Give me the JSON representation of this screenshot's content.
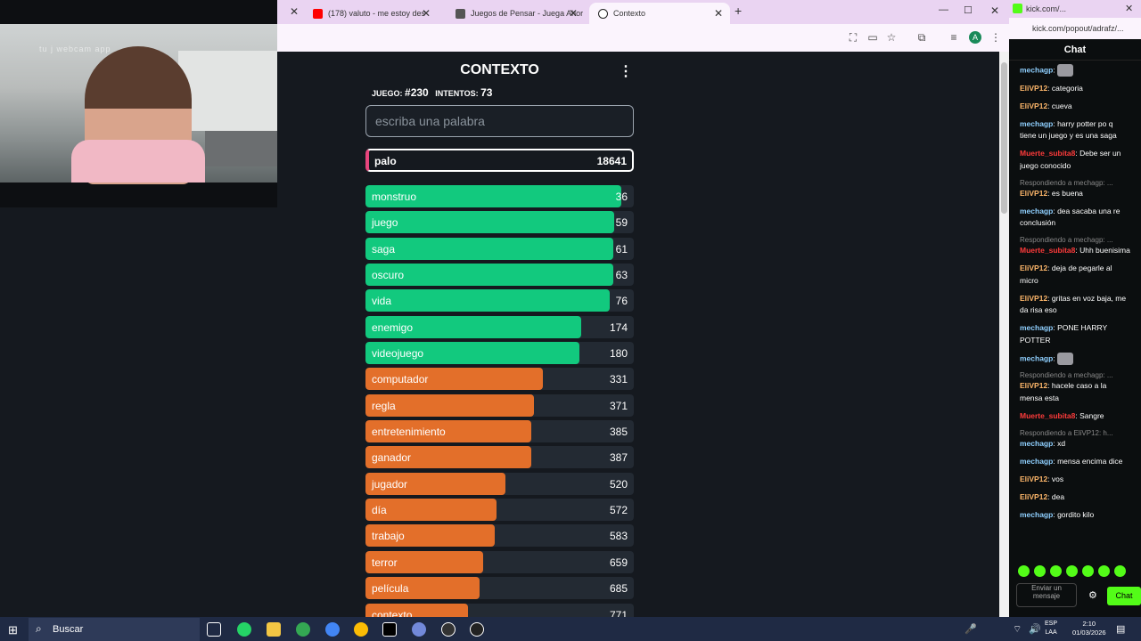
{
  "webcam": {
    "watermark": "tu j webcam app"
  },
  "browser": {
    "tabs": [
      {
        "label": "(178) valuto - me estoy des",
        "favicon_color": "#ff0000"
      },
      {
        "label": "Juegos de Pensar - Juega Ahor",
        "favicon_color": "#555555"
      },
      {
        "label": "Contexto",
        "favicon_color": "#222222"
      }
    ]
  },
  "contexto": {
    "title": "CONTEXTO",
    "menu_icon": "⋮",
    "game_label": "JUEGO:",
    "game_number": "#230",
    "attempts_label": "INTENTOS:",
    "attempts": "73",
    "input_placeholder": "escriba una palabra",
    "last_guess": {
      "word": "palo",
      "rank": "18641"
    },
    "guesses": [
      {
        "word": "monstruo",
        "rank": "36",
        "fill": 0.955,
        "color": "#12c97e"
      },
      {
        "word": "juego",
        "rank": "59",
        "fill": 0.927,
        "color": "#12c97e"
      },
      {
        "word": "saga",
        "rank": "61",
        "fill": 0.924,
        "color": "#12c97e"
      },
      {
        "word": "oscuro",
        "rank": "63",
        "fill": 0.924,
        "color": "#12c97e"
      },
      {
        "word": "vida",
        "rank": "76",
        "fill": 0.91,
        "color": "#12c97e"
      },
      {
        "word": "enemigo",
        "rank": "174",
        "fill": 0.804,
        "color": "#12c97e"
      },
      {
        "word": "videojuego",
        "rank": "180",
        "fill": 0.797,
        "color": "#12c97e"
      },
      {
        "word": "computador",
        "rank": "331",
        "fill": 0.66,
        "color": "#e36f2a"
      },
      {
        "word": "regla",
        "rank": "371",
        "fill": 0.628,
        "color": "#e36f2a"
      },
      {
        "word": "entretenimiento",
        "rank": "385",
        "fill": 0.618,
        "color": "#e36f2a"
      },
      {
        "word": "ganador",
        "rank": "387",
        "fill": 0.618,
        "color": "#e36f2a"
      },
      {
        "word": "jugador",
        "rank": "520",
        "fill": 0.522,
        "color": "#e36f2a"
      },
      {
        "word": "día",
        "rank": "572",
        "fill": 0.488,
        "color": "#e36f2a"
      },
      {
        "word": "trabajo",
        "rank": "583",
        "fill": 0.482,
        "color": "#e36f2a"
      },
      {
        "word": "terror",
        "rank": "659",
        "fill": 0.44,
        "color": "#e36f2a"
      },
      {
        "word": "película",
        "rank": "685",
        "fill": 0.425,
        "color": "#e36f2a"
      },
      {
        "word": "contexto",
        "rank": "771",
        "fill": 0.382,
        "color": "#e36f2a"
      }
    ]
  },
  "side_browser": {
    "url": "kick.com/popout/adrafz/...",
    "title": "kick.com/..."
  },
  "chat": {
    "header": "Chat",
    "messages": [
      {
        "user": "mechagp",
        "text": "",
        "color": "#8fd0ff",
        "emote": true
      },
      {
        "user": "EliVP12",
        "text": "categoria",
        "color": "#ffb86b"
      },
      {
        "user": "EliVP12",
        "text": "cueva",
        "color": "#ffb86b"
      },
      {
        "user": "mechagp",
        "text": "harry potter po q tiene un juego y es una saga",
        "color": "#8fd0ff"
      },
      {
        "user": "Muerte_subita8",
        "text": "Debe ser un juego conocido",
        "color": "#ff3b3b"
      },
      {
        "reply": "Respondiendo a mechagp: ...",
        "user": "EliVP12",
        "text": "es buena",
        "color": "#ffb86b"
      },
      {
        "user": "mechagp",
        "text": "dea sacaba una re conclusión",
        "color": "#8fd0ff"
      },
      {
        "reply": "Respondiendo a mechagp: ...",
        "user": "Muerte_subita8",
        "text": "Uhh buenisima",
        "color": "#ff3b3b"
      },
      {
        "user": "EliVP12",
        "text": "deja de pegarle al micro",
        "color": "#ffb86b"
      },
      {
        "user": "EliVP12",
        "text": "gritas en voz baja, me da risa eso",
        "color": "#ffb86b"
      },
      {
        "user": "mechagp",
        "text": "PONE HARRY POTTER",
        "color": "#8fd0ff"
      },
      {
        "user": "mechagp",
        "text": "",
        "color": "#8fd0ff",
        "emote": true
      },
      {
        "reply": "Respondiendo a mechagp: ...",
        "user": "EliVP12",
        "text": "hacele caso a la mensa esta",
        "color": "#ffb86b"
      },
      {
        "user": "Muerte_subita8",
        "text": "Sangre",
        "color": "#ff3b3b"
      },
      {
        "reply": "Respondiendo a EliVP12: h...",
        "user": "mechagp",
        "text": "xd",
        "color": "#8fd0ff"
      },
      {
        "user": "mechagp",
        "text": "mensa encima dice",
        "color": "#8fd0ff"
      },
      {
        "user": "EliVP12",
        "text": "vos",
        "color": "#ffb86b"
      },
      {
        "user": "EliVP12",
        "text": "dea",
        "color": "#ffb86b"
      },
      {
        "user": "mechagp",
        "text": "gordito kilo",
        "color": "#8fd0ff"
      }
    ],
    "input_placeholder": "Enviar un mensaje",
    "send_label": "Chat"
  },
  "taskbar": {
    "search_label": "Buscar",
    "lang": "ESP\nLAA",
    "time": "2:10",
    "date": "01/03/2026"
  }
}
